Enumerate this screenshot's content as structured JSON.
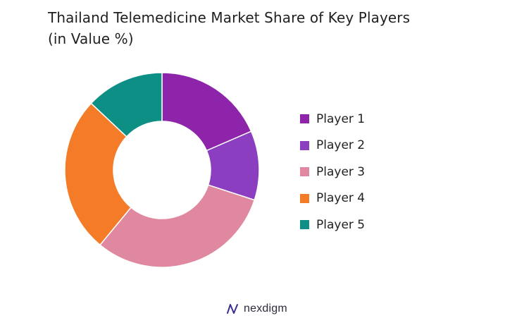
{
  "title_line1": "Thailand Telemedicine Market Share of Key Players",
  "title_line2": "(in Value %)",
  "brand": {
    "name": "nexdigm",
    "logo_icon": "nexdigm-logo-icon"
  },
  "chart_data": {
    "type": "pie",
    "variant": "donut",
    "title": "Thailand Telemedicine Market Share of Key Players (in Value %)",
    "legend_position": "right",
    "categories": [
      "Player 1",
      "Player 2",
      "Player 3",
      "Player 4",
      "Player 5"
    ],
    "values": [
      18.5,
      11.5,
      31,
      26,
      13
    ],
    "colors": [
      "#8e24aa",
      "#8b3fc0",
      "#e0889f",
      "#f47c28",
      "#0e8f86"
    ]
  }
}
